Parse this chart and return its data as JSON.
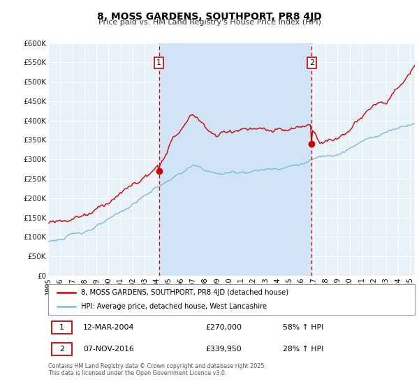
{
  "title": "8, MOSS GARDENS, SOUTHPORT, PR8 4JD",
  "subtitle": "Price paid vs. HM Land Registry's House Price Index (HPI)",
  "background_color": "#ffffff",
  "plot_bg_color": "#e8f0f8",
  "plot_bg_between": "#d0e4f5",
  "grid_color": "#c8d8e8",
  "ylim": [
    0,
    600000
  ],
  "yticks": [
    0,
    50000,
    100000,
    150000,
    200000,
    250000,
    300000,
    350000,
    400000,
    450000,
    500000,
    550000,
    600000
  ],
  "xlim_start": 1995.0,
  "xlim_end": 2025.4,
  "xtick_years": [
    1995,
    1996,
    1997,
    1998,
    1999,
    2000,
    2001,
    2002,
    2003,
    2004,
    2005,
    2006,
    2007,
    2008,
    2009,
    2010,
    2011,
    2012,
    2013,
    2014,
    2015,
    2016,
    2017,
    2018,
    2019,
    2020,
    2021,
    2022,
    2023,
    2024,
    2025
  ],
  "hpi_color": "#7fb8d8",
  "price_color": "#cc0000",
  "sale1_date": "12-MAR-2004",
  "sale1_price": 270000,
  "sale1_pct": "58%",
  "sale1_year": 2004.19,
  "sale2_date": "07-NOV-2016",
  "sale2_price": 339950,
  "sale2_pct": "28%",
  "sale2_year": 2016.85,
  "vline_color": "#cc0000",
  "legend_line1": "8, MOSS GARDENS, SOUTHPORT, PR8 4JD (detached house)",
  "legend_line2": "HPI: Average price, detached house, West Lancashire",
  "footer": "Contains HM Land Registry data © Crown copyright and database right 2025.\nThis data is licensed under the Open Government Licence v3.0.",
  "annotation1_label": "1",
  "annotation2_label": "2"
}
